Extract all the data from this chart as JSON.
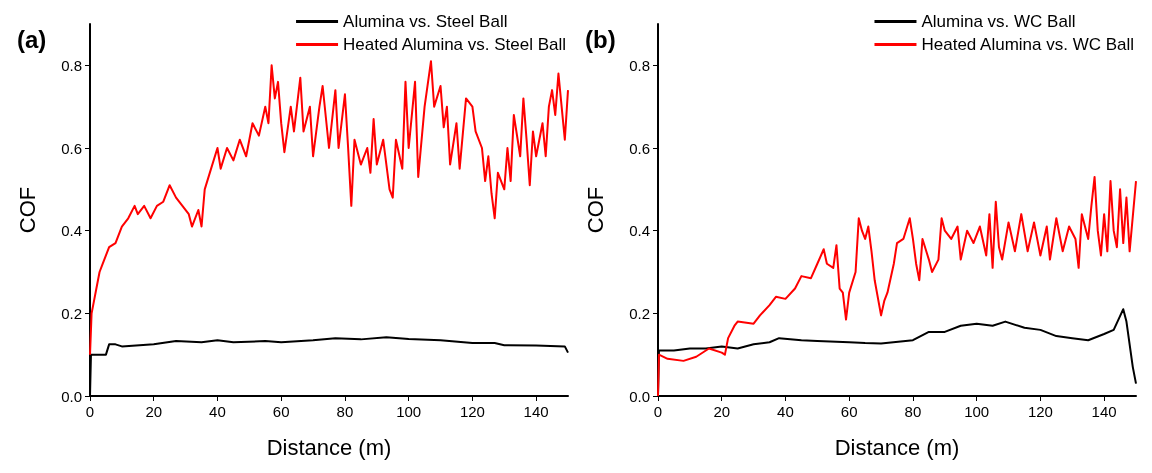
{
  "chart_data": [
    {
      "type": "line",
      "title": "(a)",
      "xlabel": "Distance (m)",
      "ylabel": "COF",
      "xlim": [
        0,
        150
      ],
      "xticks": [
        0,
        20,
        40,
        60,
        80,
        100,
        120,
        140
      ],
      "ylim": [
        0,
        0.9
      ],
      "yticks": [
        {
          "value": 0,
          "label": "0.0"
        },
        {
          "value": 0.2,
          "label": "0.2"
        },
        {
          "value": 0.4,
          "label": "0.4"
        },
        {
          "value": 0.6,
          "label": "0.6"
        },
        {
          "value": 0.8,
          "label": "0.8"
        }
      ],
      "grid": false,
      "legend": "top right",
      "marker": "none",
      "line_style": "solid",
      "series": [
        {
          "name": "Alumina vs. Steel Ball",
          "color": "#000000",
          "x": [
            0,
            0.3,
            3,
            5,
            6,
            8,
            10,
            20,
            27,
            35,
            40,
            45,
            55,
            60,
            70,
            77,
            85,
            93,
            100,
            110,
            120,
            127,
            130,
            140,
            149,
            150
          ],
          "values": [
            0,
            0.1,
            0.1,
            0.1,
            0.125,
            0.125,
            0.12,
            0.125,
            0.133,
            0.13,
            0.135,
            0.13,
            0.133,
            0.13,
            0.135,
            0.14,
            0.137,
            0.142,
            0.138,
            0.135,
            0.128,
            0.128,
            0.123,
            0.122,
            0.12,
            0.105
          ]
        },
        {
          "name": "Heated Alumina vs. Steel Ball",
          "color": "#ff0000",
          "x": [
            0,
            0.5,
            1,
            2,
            3,
            4,
            5,
            6,
            8,
            10,
            12,
            14,
            15,
            17,
            19,
            21,
            23,
            25,
            27,
            29,
            31,
            32,
            34,
            35,
            36,
            38,
            40,
            41,
            43,
            45,
            47,
            49,
            51,
            53,
            55,
            56,
            57,
            58,
            59,
            60,
            61,
            63,
            64,
            66,
            67,
            69,
            70,
            72,
            73,
            75,
            77,
            78,
            80,
            81,
            82,
            83,
            85,
            87,
            88,
            89,
            90,
            92,
            94,
            95,
            96,
            98,
            99,
            100,
            102,
            103,
            105,
            107,
            108,
            110,
            111,
            112,
            113,
            115,
            116,
            118,
            120,
            121,
            123,
            124,
            125,
            126,
            127,
            128,
            130,
            131,
            132,
            133,
            135,
            136,
            137,
            138,
            139,
            140,
            142,
            143,
            144,
            145,
            146,
            147,
            148,
            149,
            150
          ],
          "values": [
            0.1,
            0.2,
            0.22,
            0.26,
            0.3,
            0.32,
            0.34,
            0.36,
            0.37,
            0.41,
            0.43,
            0.46,
            0.44,
            0.46,
            0.43,
            0.46,
            0.47,
            0.51,
            0.48,
            0.46,
            0.44,
            0.41,
            0.45,
            0.41,
            0.5,
            0.55,
            0.6,
            0.55,
            0.6,
            0.57,
            0.62,
            0.58,
            0.66,
            0.63,
            0.7,
            0.66,
            0.8,
            0.72,
            0.76,
            0.66,
            0.59,
            0.7,
            0.64,
            0.77,
            0.64,
            0.7,
            0.58,
            0.7,
            0.75,
            0.6,
            0.74,
            0.6,
            0.73,
            0.6,
            0.46,
            0.62,
            0.56,
            0.6,
            0.54,
            0.67,
            0.56,
            0.62,
            0.5,
            0.48,
            0.62,
            0.55,
            0.76,
            0.6,
            0.76,
            0.53,
            0.7,
            0.81,
            0.7,
            0.75,
            0.65,
            0.7,
            0.56,
            0.66,
            0.55,
            0.72,
            0.7,
            0.64,
            0.6,
            0.52,
            0.58,
            0.49,
            0.43,
            0.54,
            0.5,
            0.6,
            0.52,
            0.68,
            0.58,
            0.72,
            0.62,
            0.51,
            0.64,
            0.58,
            0.66,
            0.58,
            0.7,
            0.74,
            0.68,
            0.78,
            0.7,
            0.62,
            0.74
          ]
        }
      ]
    },
    {
      "type": "line",
      "title": "(b)",
      "xlabel": "Distance (m)",
      "ylabel": "COF",
      "xlim": [
        0,
        150
      ],
      "xticks": [
        0,
        20,
        40,
        60,
        80,
        100,
        120,
        140
      ],
      "ylim": [
        0,
        0.9
      ],
      "yticks": [
        {
          "value": 0,
          "label": "0.0"
        },
        {
          "value": 0.2,
          "label": "0.2"
        },
        {
          "value": 0.4,
          "label": "0.4"
        },
        {
          "value": 0.6,
          "label": "0.6"
        },
        {
          "value": 0.8,
          "label": "0.8"
        }
      ],
      "grid": false,
      "legend": "top right",
      "marker": "none",
      "line_style": "solid",
      "series": [
        {
          "name": "Alumina vs. WC Ball",
          "color": "#000000",
          "x": [
            0,
            0.3,
            5,
            10,
            15,
            20,
            25,
            30,
            35,
            38,
            45,
            50,
            60,
            65,
            70,
            80,
            85,
            90,
            95,
            100,
            105,
            109,
            115,
            120,
            125,
            130,
            135,
            140,
            143,
            146,
            147,
            149,
            150
          ],
          "values": [
            0,
            0.11,
            0.11,
            0.115,
            0.115,
            0.12,
            0.115,
            0.125,
            0.13,
            0.14,
            0.135,
            0.133,
            0.13,
            0.128,
            0.127,
            0.135,
            0.155,
            0.155,
            0.17,
            0.175,
            0.17,
            0.18,
            0.165,
            0.16,
            0.145,
            0.14,
            0.135,
            0.15,
            0.16,
            0.21,
            0.18,
            0.07,
            0.03
          ]
        },
        {
          "name": "Heated Alumina vs. WC Ball",
          "color": "#ff0000",
          "x": [
            0,
            0.3,
            3,
            8,
            12,
            16,
            20,
            21,
            22,
            24,
            25,
            30,
            32,
            35,
            37,
            40,
            43,
            45,
            48,
            50,
            52,
            53,
            55,
            56,
            57,
            58,
            59,
            60,
            62,
            63,
            64,
            65,
            66,
            67,
            68,
            70,
            71,
            72,
            74,
            75,
            77,
            79,
            80,
            81,
            82,
            83,
            85,
            86,
            88,
            89,
            90,
            92,
            94,
            95,
            97,
            99,
            101,
            103,
            104,
            105,
            106,
            107,
            108,
            110,
            112,
            114,
            116,
            118,
            120,
            122,
            123,
            125,
            127,
            129,
            131,
            132,
            133,
            135,
            136,
            137,
            138,
            139,
            140,
            141,
            142,
            143,
            144,
            145,
            146,
            147,
            148,
            150
          ],
          "values": [
            0,
            0.1,
            0.09,
            0.085,
            0.095,
            0.115,
            0.105,
            0.1,
            0.14,
            0.17,
            0.18,
            0.175,
            0.195,
            0.22,
            0.24,
            0.235,
            0.26,
            0.29,
            0.285,
            0.32,
            0.355,
            0.32,
            0.31,
            0.365,
            0.26,
            0.25,
            0.185,
            0.25,
            0.3,
            0.43,
            0.4,
            0.38,
            0.41,
            0.35,
            0.28,
            0.195,
            0.23,
            0.25,
            0.32,
            0.37,
            0.38,
            0.43,
            0.38,
            0.32,
            0.28,
            0.38,
            0.33,
            0.3,
            0.33,
            0.43,
            0.4,
            0.38,
            0.41,
            0.33,
            0.4,
            0.37,
            0.41,
            0.34,
            0.44,
            0.31,
            0.47,
            0.36,
            0.33,
            0.42,
            0.35,
            0.44,
            0.35,
            0.42,
            0.34,
            0.41,
            0.33,
            0.43,
            0.35,
            0.41,
            0.38,
            0.31,
            0.44,
            0.38,
            0.46,
            0.53,
            0.4,
            0.34,
            0.44,
            0.35,
            0.52,
            0.4,
            0.36,
            0.5,
            0.37,
            0.48,
            0.35,
            0.52
          ]
        }
      ]
    }
  ]
}
